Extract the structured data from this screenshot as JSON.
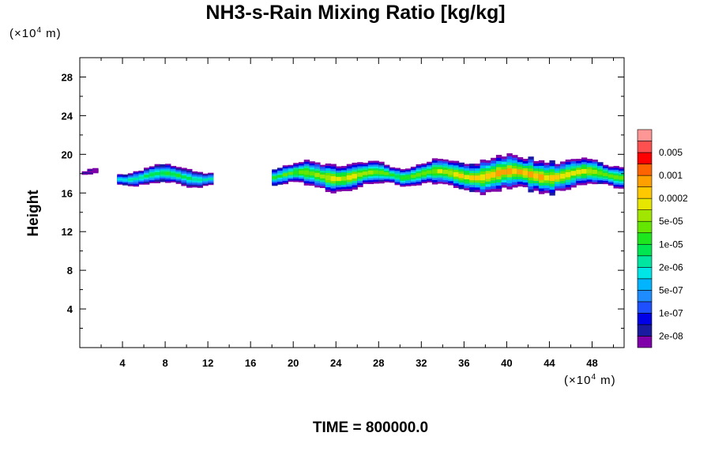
{
  "chart_data": {
    "type": "heatmap",
    "title": "NH3-s-Rain Mixing Ratio [kg/kg]",
    "ylabel": "Height",
    "xlabel": "",
    "x_unit": "(×10⁴ m)",
    "y_unit": "(×10⁴ m)",
    "footer": "TIME = 800000.0",
    "xlim": [
      0,
      51
    ],
    "ylim": [
      0,
      30
    ],
    "x_ticks": [
      4,
      8,
      12,
      16,
      20,
      24,
      28,
      32,
      36,
      40,
      44,
      48
    ],
    "y_ticks": [
      4,
      8,
      12,
      16,
      20,
      24,
      28
    ],
    "colorbar": {
      "labels": [
        "0.005",
        "0.001",
        "0.0002",
        "5e-05",
        "1e-05",
        "2e-06",
        "5e-07",
        "1e-07",
        "2e-08"
      ],
      "levels": [
        "1e-08",
        "2e-08",
        "5e-08",
        "1e-07",
        "2e-07",
        "5e-07",
        "1e-06",
        "2e-06",
        "5e-06",
        "1e-05",
        "2e-05",
        "5e-05",
        "0.0001",
        "0.0002",
        "0.0005",
        "0.001",
        "0.002",
        "0.005",
        "0.01"
      ],
      "colors": [
        "#7f00a8",
        "#1a1aa0",
        "#0000e6",
        "#1e50ff",
        "#1e8cff",
        "#00b4ff",
        "#00e6e6",
        "#00e6a0",
        "#00e650",
        "#1ee61e",
        "#64e600",
        "#a0e600",
        "#e6e600",
        "#ffc800",
        "#ffa000",
        "#ff6400",
        "#ff0000",
        "#ff5050",
        "#ff9696"
      ]
    },
    "regions": [
      {
        "x_range": [
          0.2,
          1.5
        ],
        "y_center": 18.0,
        "thickness": 0.6,
        "peak_level": 1
      },
      {
        "x_range": [
          3.5,
          12.5
        ],
        "y_center": 17.7,
        "thickness": 2.0,
        "peak_level": 10
      },
      {
        "x_range": [
          18.0,
          30.0
        ],
        "y_center": 17.8,
        "thickness": 2.8,
        "peak_level": 14
      },
      {
        "x_range": [
          30.0,
          51.0
        ],
        "y_center": 17.9,
        "thickness": 3.4,
        "peak_level": 16
      }
    ]
  }
}
